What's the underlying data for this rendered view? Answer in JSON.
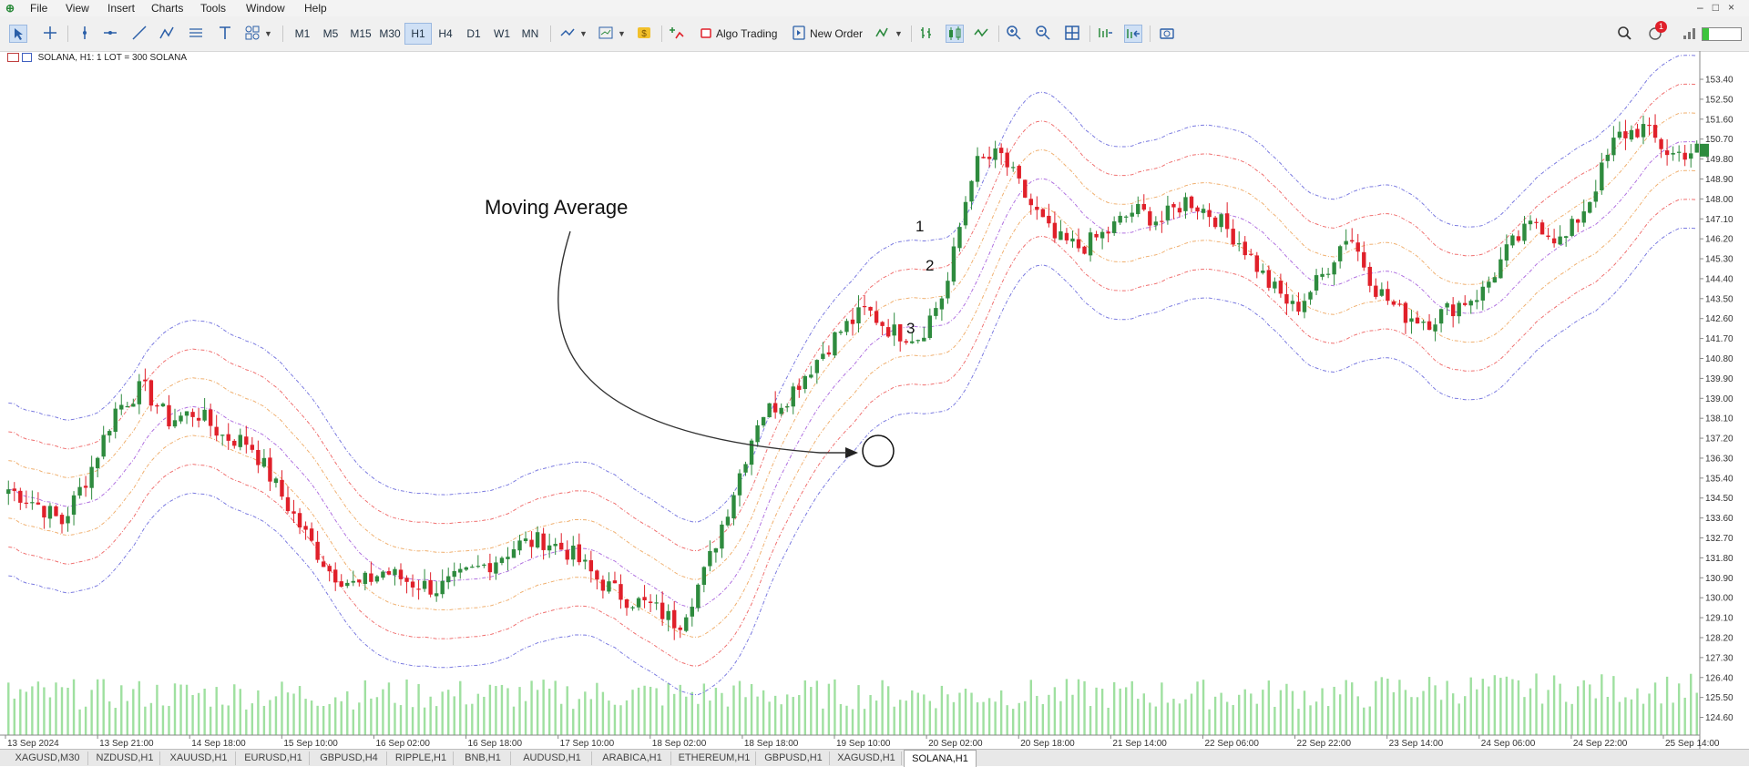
{
  "menu": [
    "File",
    "View",
    "Insert",
    "Charts",
    "Tools",
    "Window",
    "Help"
  ],
  "window_controls": [
    "–",
    "□",
    "×"
  ],
  "toolbar": {
    "timeframes": [
      "M1",
      "M5",
      "M15",
      "M30",
      "H1",
      "H4",
      "D1",
      "W1",
      "MN"
    ],
    "active_timeframe": "H1",
    "algo_trading": "Algo Trading",
    "new_order": "New Order",
    "notification_count": "1"
  },
  "chart_info": "SOLANA, H1:  1 LOT = 300 SOLANA",
  "annotations": {
    "label": "Moving Average",
    "n1": "1",
    "n2": "2",
    "n3": "3"
  },
  "tabs": [
    "XAGUSD,M30",
    "NZDUSD,H1",
    "XAUUSD,H1",
    "EURUSD,H1",
    "GBPUSD,H4",
    "RIPPLE,H1",
    "BNB,H1",
    "AUDUSD,H1",
    "ARABICA,H1",
    "ETHEREUM,H1",
    "GBPUSD,H1",
    "XAGUSD,H1",
    "SOLANA,H1"
  ],
  "active_tab": "SOLANA,H1",
  "colors": {
    "bull": "#2e8b3e",
    "bear": "#e0202a",
    "volume": "#9fe0a0",
    "outer": "#7a7ae0",
    "mid": "#f07070",
    "inner": "#f0b070",
    "ma": "#b070e0"
  },
  "chart_data": {
    "type": "candlestick",
    "symbol": "SOLANA",
    "timeframe": "H1",
    "ylim": [
      123.8,
      154.1
    ],
    "y_ticks": [
      153.4,
      152.5,
      151.6,
      150.7,
      149.8,
      148.9,
      148.0,
      147.1,
      146.2,
      145.3,
      144.4,
      143.5,
      142.6,
      141.7,
      140.8,
      139.9,
      139.0,
      138.1,
      137.2,
      136.3,
      135.4,
      134.5,
      133.6,
      132.7,
      131.8,
      130.9,
      130.0,
      129.1,
      128.2,
      127.3,
      126.4,
      125.5,
      124.6
    ],
    "x_labels": [
      "13 Sep 2024",
      "13 Sep 21:00",
      "14 Sep 18:00",
      "15 Sep 10:00",
      "16 Sep 02:00",
      "16 Sep 18:00",
      "17 Sep 10:00",
      "18 Sep 02:00",
      "18 Sep 18:00",
      "19 Sep 10:00",
      "20 Sep 02:00",
      "20 Sep 18:00",
      "21 Sep 14:00",
      "22 Sep 06:00",
      "22 Sep 22:00",
      "23 Sep 14:00",
      "24 Sep 06:00",
      "24 Sep 22:00",
      "25 Sep 14:00"
    ],
    "close_anchors": [
      134.9,
      134.3,
      133.4,
      135.6,
      138.5,
      139.5,
      138.0,
      138.4,
      137.3,
      137.0,
      135.0,
      133.0,
      131.2,
      130.5,
      131.2,
      130.7,
      130.4,
      131.0,
      131.6,
      132.4,
      132.6,
      132.0,
      130.8,
      130.0,
      129.6,
      128.8,
      131.2,
      134.6,
      138.2,
      139.0,
      140.5,
      142.0,
      143.0,
      142.0,
      141.8,
      144.0,
      149.5,
      150.0,
      148.0,
      146.2,
      145.8,
      146.5,
      147.5,
      147.0,
      148.0,
      147.2,
      146.0,
      144.2,
      143.0,
      144.5,
      146.5,
      144.0,
      142.8,
      142.5,
      143.2,
      143.8,
      145.8,
      147.0,
      146.0,
      148.0,
      150.8,
      151.2,
      150.0,
      150.2
    ],
    "band_offsets": {
      "outer": 3.9,
      "mid": 2.6,
      "inner": 1.3
    }
  }
}
